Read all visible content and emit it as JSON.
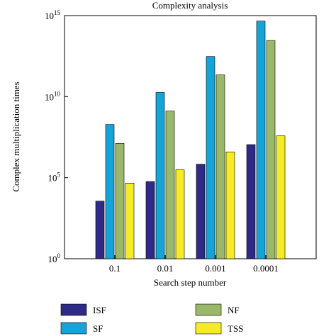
{
  "chart_data": {
    "type": "bar",
    "title": "Complexity analysis",
    "xlabel": "Search step number",
    "ylabel": "Complex multiplication times",
    "yscale": "log",
    "ylim": [
      1,
      1000000000000000.0
    ],
    "categories": [
      "0.1",
      "0.01",
      "0.001",
      "0.0001"
    ],
    "series": [
      {
        "name": "ISF",
        "color": "#2e2a85",
        "values": [
          3600.0,
          58000.0,
          680000.0,
          11000000.0
        ]
      },
      {
        "name": "SF",
        "color": "#14a4d8",
        "values": [
          190000000.0,
          18000000000.0,
          3000000000000.0,
          460000000000000.0
        ]
      },
      {
        "name": "NF",
        "color": "#9ab86a",
        "values": [
          13000000.0,
          1300000000.0,
          220000000000.0,
          29000000000000.0
        ]
      },
      {
        "name": "TSS",
        "color": "#f6ec26",
        "values": [
          46000.0,
          310000.0,
          3900000.0,
          38000000.0
        ]
      }
    ],
    "yticks": [
      {
        "value": 1,
        "base": "10",
        "exp": "0"
      },
      {
        "value": 100000.0,
        "base": "10",
        "exp": "5"
      },
      {
        "value": 10000000000.0,
        "base": "10",
        "exp": "10"
      },
      {
        "value": 1000000000000000.0,
        "base": "10",
        "exp": "15"
      }
    ],
    "grid": false,
    "legend_position": "bottom"
  }
}
